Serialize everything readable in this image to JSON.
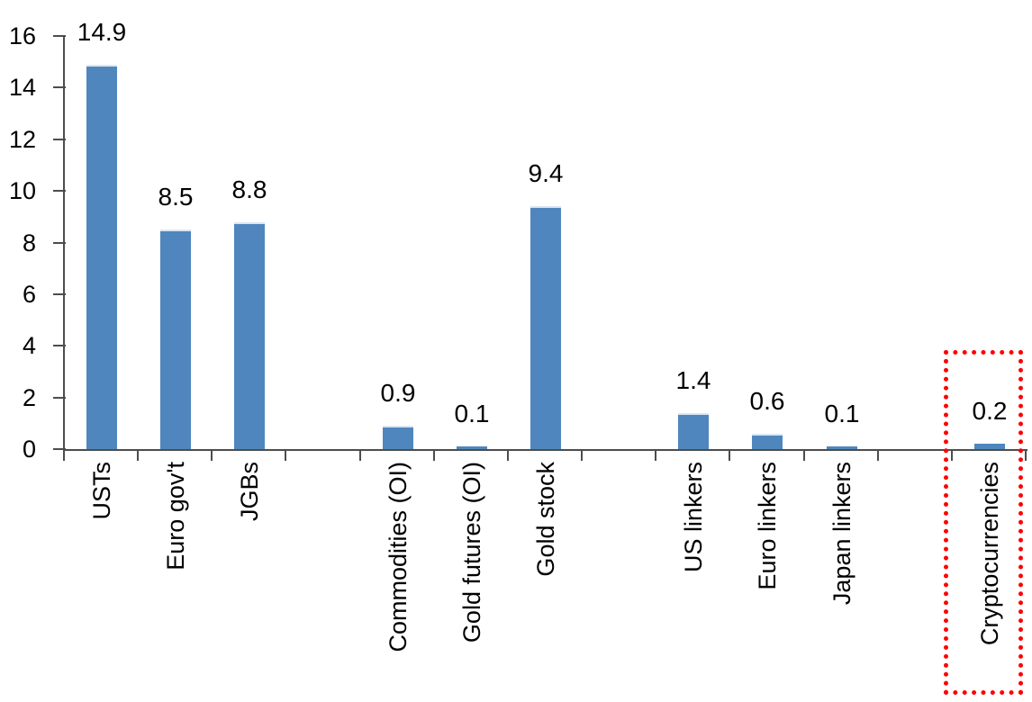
{
  "chart_data": {
    "type": "bar",
    "title": "",
    "xlabel": "",
    "ylabel": "",
    "ylim": [
      0,
      16
    ],
    "yticks": [
      0,
      2,
      4,
      6,
      8,
      10,
      12,
      14,
      16
    ],
    "grid": false,
    "legend": "none",
    "bar_color": "#4f86bd",
    "bar_top_edge_color": "#d9e6f3",
    "axis_color": "#4d4d4d",
    "label_color": "#000000",
    "points": [
      {
        "category": "USTs",
        "value": 14.9,
        "label": "14.9"
      },
      {
        "category": "Euro gov't",
        "value": 8.5,
        "label": "8.5"
      },
      {
        "category": "JGBs",
        "value": 8.8,
        "label": "8.8"
      },
      {
        "category": "",
        "value": null,
        "label": ""
      },
      {
        "category": "Commodities (OI)",
        "value": 0.9,
        "label": "0.9"
      },
      {
        "category": "Gold futures (OI)",
        "value": 0.1,
        "label": "0.1"
      },
      {
        "category": "Gold stock",
        "value": 9.4,
        "label": "9.4"
      },
      {
        "category": "",
        "value": null,
        "label": ""
      },
      {
        "category": "US linkers",
        "value": 1.4,
        "label": "1.4"
      },
      {
        "category": "Euro linkers",
        "value": 0.6,
        "label": "0.6"
      },
      {
        "category": "Japan linkers",
        "value": 0.1,
        "label": "0.1"
      },
      {
        "category": "",
        "value": null,
        "label": ""
      },
      {
        "category": "Cryptocurrencies",
        "value": 0.2,
        "label": "0.2"
      }
    ],
    "highlight": {
      "category": "Cryptocurrencies",
      "style": "red-dotted-box",
      "color": "#ff0000"
    }
  }
}
